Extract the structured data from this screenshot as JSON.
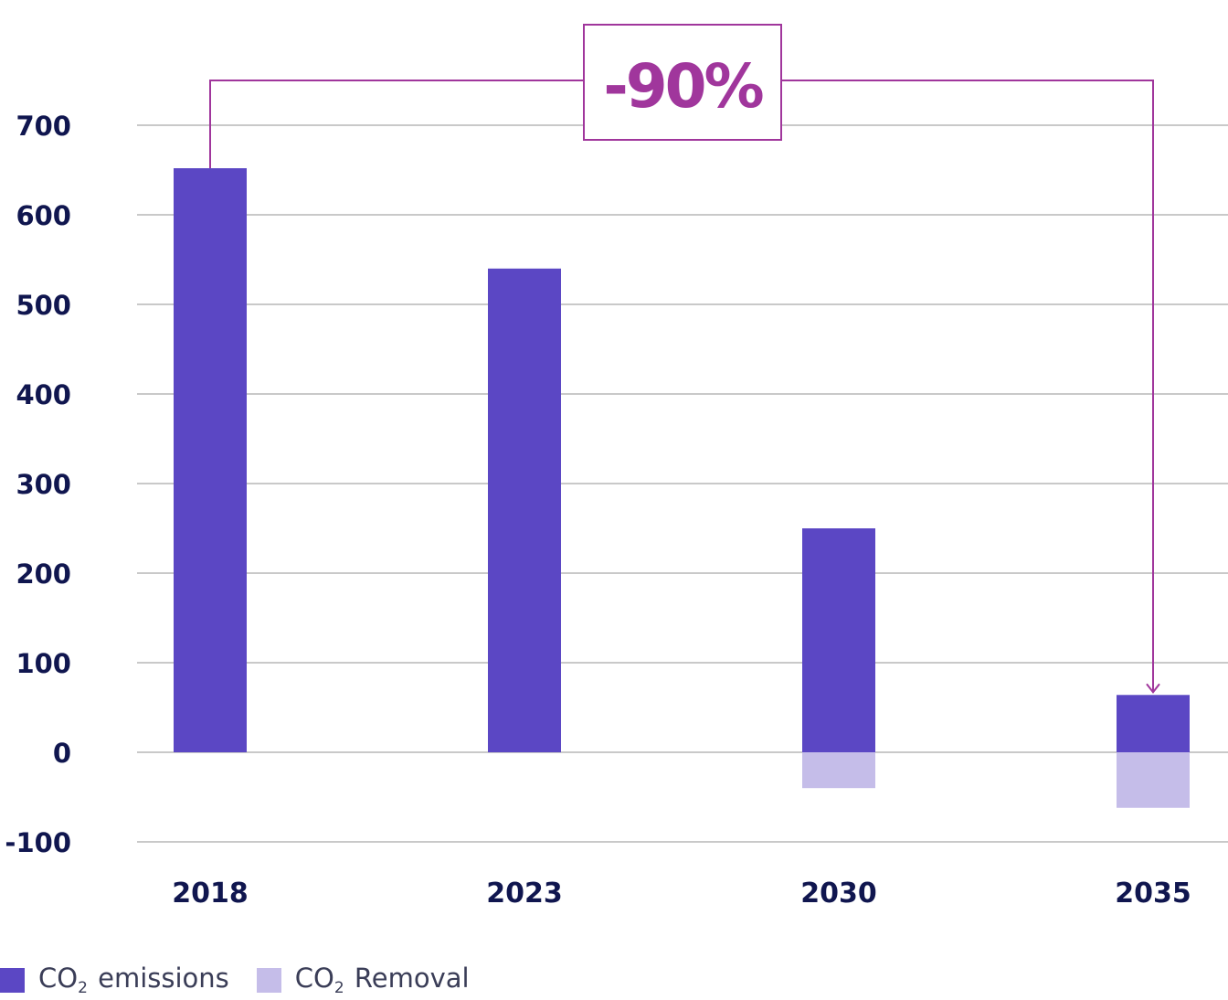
{
  "colors": {
    "emissions": "#5b47c4",
    "removal": "#c5bde9",
    "accent": "#a0369c",
    "grid": "#b7b7b7",
    "axis_text": "#10164f"
  },
  "chart_data": {
    "type": "bar",
    "stacked": true,
    "categories": [
      "2018",
      "2023",
      "2030",
      "2035"
    ],
    "series": [
      {
        "name": "CO₂ emissions",
        "values": [
          652,
          540,
          250,
          64
        ]
      },
      {
        "name": "CO₂ Removal",
        "values": [
          0,
          0,
          -40,
          -62
        ]
      }
    ],
    "ylim": [
      -100,
      700
    ],
    "yticks": [
      "700",
      "600",
      "500",
      "400",
      "300",
      "200",
      "100",
      "0",
      "-100"
    ],
    "grid": true,
    "legend_position": "bottom-left",
    "annotation": {
      "text": "-90%",
      "from_category": "2018",
      "to_category": "2035"
    }
  },
  "legend": {
    "items": [
      {
        "prefix": "CO",
        "sub": "2",
        "suffix": " emissions"
      },
      {
        "prefix": "CO",
        "sub": "2",
        "suffix": " Removal"
      }
    ]
  }
}
